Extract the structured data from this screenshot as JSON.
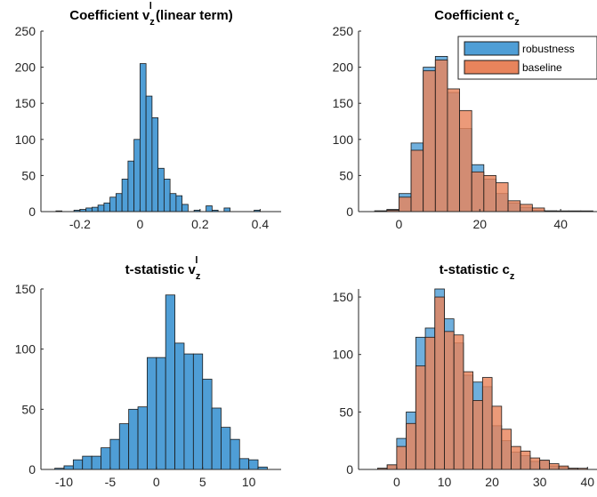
{
  "figure": {
    "background": "#ffffff",
    "colors": {
      "robustness": "#4f9ed6",
      "baseline": "#e8845c",
      "edge": "#1a1a1a",
      "axis": "#262626"
    }
  },
  "chart_data": [
    {
      "type": "bar",
      "title": "Coefficient v_z^l (linear term)",
      "title_parts": {
        "main": "Coefficient v",
        "sub": "z",
        "sup": "l",
        "rest": " (linear term)"
      },
      "xlim": [
        -0.33,
        0.47
      ],
      "ylim": [
        0,
        250
      ],
      "xticks": [
        -0.2,
        0,
        0.2,
        0.4
      ],
      "xtick_labels": [
        "-0.2",
        "0",
        "0.2",
        "0.4"
      ],
      "yticks": [
        0,
        50,
        100,
        150,
        200,
        250
      ],
      "ytick_labels": [
        "0",
        "50",
        "100",
        "150",
        "200",
        "250"
      ],
      "bin_edges": [
        -0.28,
        -0.26,
        -0.24,
        -0.22,
        -0.2,
        -0.18,
        -0.16,
        -0.14,
        -0.12,
        -0.1,
        -0.08,
        -0.06,
        -0.04,
        -0.02,
        0.0,
        0.02,
        0.04,
        0.06,
        0.08,
        0.1,
        0.12,
        0.14,
        0.16,
        0.18,
        0.2,
        0.22,
        0.24,
        0.26,
        0.28,
        0.3,
        0.32,
        0.34,
        0.36,
        0.38,
        0.4
      ],
      "series": [
        {
          "color_key": "robustness",
          "values": [
            1,
            0,
            0,
            2,
            3,
            5,
            6,
            9,
            12,
            20,
            25,
            45,
            70,
            100,
            205,
            160,
            130,
            60,
            45,
            25,
            22,
            10,
            0,
            2,
            0,
            8,
            2,
            0,
            5,
            0,
            0,
            0,
            0,
            2
          ]
        }
      ]
    },
    {
      "type": "bar",
      "title": "Coefficient c_z",
      "title_parts": {
        "main": "Coefficient c",
        "sub": "z",
        "sup": "",
        "rest": ""
      },
      "xlim": [
        -10,
        49
      ],
      "ylim": [
        0,
        250
      ],
      "xticks": [
        0,
        20,
        40
      ],
      "xtick_labels": [
        "0",
        "20",
        "40"
      ],
      "yticks": [
        0,
        50,
        100,
        150,
        200,
        250
      ],
      "ytick_labels": [
        "0",
        "50",
        "100",
        "150",
        "200",
        "250"
      ],
      "bin_edges": [
        -6,
        -3,
        0,
        3,
        6,
        9,
        12,
        15,
        18,
        21,
        24,
        27,
        30,
        33,
        36,
        39,
        42,
        45,
        48
      ],
      "legend": {
        "position": "top-right",
        "entries": [
          "robustness",
          "baseline"
        ]
      },
      "series": [
        {
          "name": "robustness",
          "color_key": "robustness",
          "values": [
            1,
            3,
            25,
            95,
            200,
            215,
            165,
            115,
            65,
            45,
            25,
            12,
            6,
            2,
            1,
            0,
            0,
            1
          ]
        },
        {
          "name": "baseline",
          "color_key": "baseline",
          "values": [
            1,
            2,
            20,
            85,
            195,
            210,
            170,
            140,
            55,
            50,
            40,
            15,
            10,
            5,
            1,
            1,
            1,
            0
          ]
        }
      ]
    },
    {
      "type": "bar",
      "title": "t-statistic v_z^l",
      "title_parts": {
        "main": "t-statistic v",
        "sub": "z",
        "sup": "l",
        "rest": ""
      },
      "xlim": [
        -12.5,
        13.5
      ],
      "ylim": [
        0,
        150
      ],
      "xticks": [
        -10,
        -5,
        0,
        5,
        10
      ],
      "xtick_labels": [
        "-10",
        "-5",
        "0",
        "5",
        "10"
      ],
      "yticks": [
        0,
        50,
        100,
        150
      ],
      "ytick_labels": [
        "0",
        "50",
        "100",
        "150"
      ],
      "bin_edges": [
        -11,
        -10,
        -9,
        -8,
        -7,
        -6,
        -5,
        -4,
        -3,
        -2,
        -1,
        0,
        1,
        2,
        3,
        4,
        5,
        6,
        7,
        8,
        9,
        10,
        11,
        12
      ],
      "series": [
        {
          "color_key": "robustness",
          "values": [
            1,
            3,
            8,
            11,
            11,
            18,
            25,
            38,
            50,
            52,
            93,
            93,
            145,
            105,
            96,
            96,
            75,
            51,
            35,
            25,
            9,
            8,
            2
          ]
        }
      ]
    },
    {
      "type": "bar",
      "title": "t-statistic c_z",
      "title_parts": {
        "main": "t-statistic c",
        "sub": "z",
        "sup": "",
        "rest": ""
      },
      "xlim": [
        -8,
        42
      ],
      "ylim": [
        0,
        157
      ],
      "xticks": [
        0,
        10,
        20,
        30,
        40
      ],
      "xtick_labels": [
        "0",
        "10",
        "20",
        "30",
        "40"
      ],
      "yticks": [
        0,
        50,
        100,
        150
      ],
      "ytick_labels": [
        "0",
        "50",
        "100",
        "150"
      ],
      "bin_edges": [
        -4,
        -2,
        0,
        2,
        4,
        6,
        8,
        10,
        12,
        14,
        16,
        18,
        20,
        22,
        24,
        26,
        28,
        30,
        32,
        34,
        36,
        38,
        40
      ],
      "series": [
        {
          "name": "robustness",
          "color_key": "robustness",
          "values": [
            1,
            4,
            27,
            50,
            115,
            123,
            160,
            131,
            110,
            82,
            76,
            72,
            38,
            25,
            15,
            12,
            7,
            8,
            3,
            2,
            1,
            0
          ]
        },
        {
          "name": "baseline",
          "color_key": "baseline",
          "values": [
            1,
            4,
            20,
            40,
            90,
            115,
            150,
            120,
            117,
            85,
            60,
            80,
            55,
            35,
            20,
            16,
            10,
            8,
            5,
            3,
            1,
            1
          ]
        }
      ]
    }
  ]
}
